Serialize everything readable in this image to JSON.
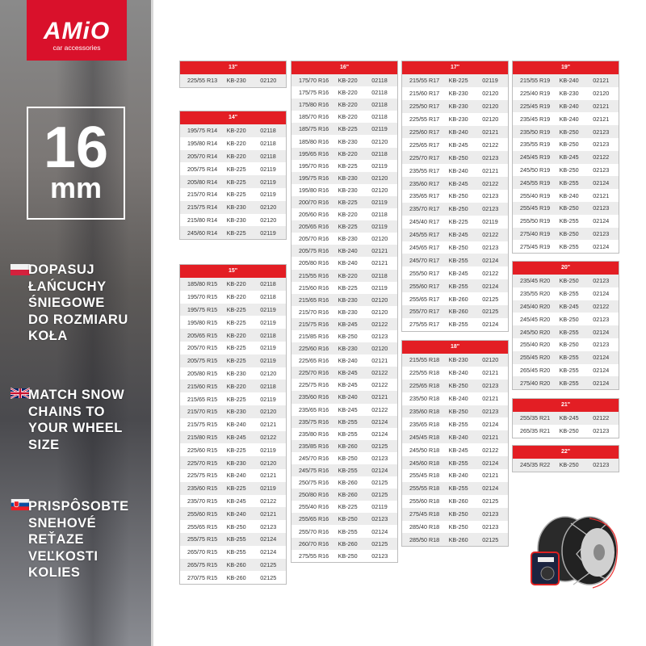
{
  "brand": {
    "name": "AMiO",
    "tagline": "car accessories",
    "color": "#d9112b"
  },
  "chain_size": {
    "value": "16",
    "unit": "mm"
  },
  "slogans": [
    {
      "lang": "pl",
      "flag": "poland-flag-icon",
      "lines": [
        "DOPASUJ",
        "ŁAŃCUCHY",
        "ŚNIEGOWE",
        "DO ROZMIARU",
        "KOŁA"
      ]
    },
    {
      "lang": "en",
      "flag": "uk-flag-icon",
      "lines": [
        "MATCH SNOW",
        "CHAINS TO",
        "YOUR WHEEL",
        "SIZE"
      ]
    },
    {
      "lang": "sk",
      "flag": "slovakia-flag-icon",
      "lines": [
        "PRISPÔSOBTE",
        "SNEHOVÉ",
        "REŤAZE",
        "VEĽKOSTI",
        "KOLIES"
      ]
    }
  ],
  "header_color": "#e31e24",
  "columns": [
    [
      {
        "title": "13\"",
        "rows": [
          [
            "225/55 R13",
            "KB-230",
            "02120"
          ]
        ]
      },
      {
        "title": "14\"",
        "rows": [
          [
            "195/75 R14",
            "KB-220",
            "02118"
          ],
          [
            "195/80 R14",
            "KB-220",
            "02118"
          ],
          [
            "205/70 R14",
            "KB-220",
            "02118"
          ],
          [
            "205/75 R14",
            "KB-225",
            "02119"
          ],
          [
            "205/80 R14",
            "KB-225",
            "02119"
          ],
          [
            "215/70 R14",
            "KB-225",
            "02119"
          ],
          [
            "215/75 R14",
            "KB-230",
            "02120"
          ],
          [
            "215/80 R14",
            "KB-230",
            "02120"
          ],
          [
            "245/60 R14",
            "KB-225",
            "02119"
          ]
        ]
      },
      {
        "title": "15\"",
        "rows": [
          [
            "185/80 R15",
            "KB-220",
            "02118"
          ],
          [
            "195/70 R15",
            "KB-220",
            "02118"
          ],
          [
            "195/75 R15",
            "KB-225",
            "02119"
          ],
          [
            "195/80 R15",
            "KB-225",
            "02119"
          ],
          [
            "205/65 R15",
            "KB-220",
            "02118"
          ],
          [
            "205/70 R15",
            "KB-225",
            "02119"
          ],
          [
            "205/75 R15",
            "KB-225",
            "02119"
          ],
          [
            "205/80 R15",
            "KB-230",
            "02120"
          ],
          [
            "215/60 R15",
            "KB-220",
            "02118"
          ],
          [
            "215/65 R15",
            "KB-225",
            "02119"
          ],
          [
            "215/70 R15",
            "KB-230",
            "02120"
          ],
          [
            "215/75 R15",
            "KB-240",
            "02121"
          ],
          [
            "215/80 R15",
            "KB-245",
            "02122"
          ],
          [
            "225/60 R15",
            "KB-225",
            "02119"
          ],
          [
            "225/70 R15",
            "KB-230",
            "02120"
          ],
          [
            "225/75 R15",
            "KB-240",
            "02121"
          ],
          [
            "235/60 R15",
            "KB-225",
            "02119"
          ],
          [
            "235/70 R15",
            "KB-245",
            "02122"
          ],
          [
            "255/60 R15",
            "KB-240",
            "02121"
          ],
          [
            "255/65 R15",
            "KB-250",
            "02123"
          ],
          [
            "255/75 R15",
            "KB-255",
            "02124"
          ],
          [
            "265/70 R15",
            "KB-255",
            "02124"
          ],
          [
            "265/75 R15",
            "KB-260",
            "02125"
          ],
          [
            "270/75 R15",
            "KB-260",
            "02125"
          ]
        ]
      }
    ],
    [
      {
        "title": "16\"",
        "rows": [
          [
            "175/70 R16",
            "KB-220",
            "02118"
          ],
          [
            "175/75 R16",
            "KB-220",
            "02118"
          ],
          [
            "175/80 R16",
            "KB-220",
            "02118"
          ],
          [
            "185/70 R16",
            "KB-220",
            "02118"
          ],
          [
            "185/75 R16",
            "KB-225",
            "02119"
          ],
          [
            "185/80 R16",
            "KB-230",
            "02120"
          ],
          [
            "195/65 R16",
            "KB-220",
            "02118"
          ],
          [
            "195/70 R16",
            "KB-225",
            "02119"
          ],
          [
            "195/75 R16",
            "KB-230",
            "02120"
          ],
          [
            "195/80 R16",
            "KB-230",
            "02120"
          ],
          [
            "200/70 R16",
            "KB-225",
            "02119"
          ],
          [
            "205/60 R16",
            "KB-220",
            "02118"
          ],
          [
            "205/65 R16",
            "KB-225",
            "02119"
          ],
          [
            "205/70 R16",
            "KB-230",
            "02120"
          ],
          [
            "205/75 R16",
            "KB-240",
            "02121"
          ],
          [
            "205/80 R16",
            "KB-240",
            "02121"
          ],
          [
            "215/55 R16",
            "KB-220",
            "02118"
          ],
          [
            "215/60 R16",
            "KB-225",
            "02119"
          ],
          [
            "215/65 R16",
            "KB-230",
            "02120"
          ],
          [
            "215/70 R16",
            "KB-230",
            "02120"
          ],
          [
            "215/75 R16",
            "KB-245",
            "02122"
          ],
          [
            "215/85 R16",
            "KB-250",
            "02123"
          ],
          [
            "225/60 R16",
            "KB-230",
            "02120"
          ],
          [
            "225/65 R16",
            "KB-240",
            "02121"
          ],
          [
            "225/70 R16",
            "KB-245",
            "02122"
          ],
          [
            "225/75 R16",
            "KB-245",
            "02122"
          ],
          [
            "235/60 R16",
            "KB-240",
            "02121"
          ],
          [
            "235/65 R16",
            "KB-245",
            "02122"
          ],
          [
            "235/75 R16",
            "KB-255",
            "02124"
          ],
          [
            "235/80 R16",
            "KB-255",
            "02124"
          ],
          [
            "235/85 R16",
            "KB-260",
            "02125"
          ],
          [
            "245/70 R16",
            "KB-250",
            "02123"
          ],
          [
            "245/75 R16",
            "KB-255",
            "02124"
          ],
          [
            "250/75 R16",
            "KB-260",
            "02125"
          ],
          [
            "250/80 R16",
            "KB-260",
            "02125"
          ],
          [
            "255/40 R16",
            "KB-225",
            "02119"
          ],
          [
            "255/65 R16",
            "KB-250",
            "02123"
          ],
          [
            "255/70 R16",
            "KB-255",
            "02124"
          ],
          [
            "260/70 R16",
            "KB-260",
            "02125"
          ],
          [
            "275/55 R16",
            "KB-250",
            "02123"
          ]
        ]
      }
    ],
    [
      {
        "title": "17\"",
        "rows": [
          [
            "215/55 R17",
            "KB-225",
            "02119"
          ],
          [
            "215/60 R17",
            "KB-230",
            "02120"
          ],
          [
            "225/50 R17",
            "KB-230",
            "02120"
          ],
          [
            "225/55 R17",
            "KB-230",
            "02120"
          ],
          [
            "225/60 R17",
            "KB-240",
            "02121"
          ],
          [
            "225/65 R17",
            "KB-245",
            "02122"
          ],
          [
            "225/70 R17",
            "KB-250",
            "02123"
          ],
          [
            "235/55 R17",
            "KB-240",
            "02121"
          ],
          [
            "235/60 R17",
            "KB-245",
            "02122"
          ],
          [
            "235/65 R17",
            "KB-250",
            "02123"
          ],
          [
            "235/70 R17",
            "KB-250",
            "02123"
          ],
          [
            "245/40 R17",
            "KB-225",
            "02119"
          ],
          [
            "245/55 R17",
            "KB-245",
            "02122"
          ],
          [
            "245/65 R17",
            "KB-250",
            "02123"
          ],
          [
            "245/70 R17",
            "KB-255",
            "02124"
          ],
          [
            "255/50 R17",
            "KB-245",
            "02122"
          ],
          [
            "255/60 R17",
            "KB-255",
            "02124"
          ],
          [
            "255/65 R17",
            "KB-260",
            "02125"
          ],
          [
            "255/70 R17",
            "KB-260",
            "02125"
          ],
          [
            "275/55 R17",
            "KB-255",
            "02124"
          ]
        ]
      },
      {
        "title": "18\"",
        "rows": [
          [
            "215/55 R18",
            "KB-230",
            "02120"
          ],
          [
            "225/55 R18",
            "KB-240",
            "02121"
          ],
          [
            "225/65 R18",
            "KB-250",
            "02123"
          ],
          [
            "235/50 R18",
            "KB-240",
            "02121"
          ],
          [
            "235/60 R18",
            "KB-250",
            "02123"
          ],
          [
            "235/65 R18",
            "KB-255",
            "02124"
          ],
          [
            "245/45 R18",
            "KB-240",
            "02121"
          ],
          [
            "245/50 R18",
            "KB-245",
            "02122"
          ],
          [
            "245/60 R18",
            "KB-255",
            "02124"
          ],
          [
            "255/45 R18",
            "KB-240",
            "02121"
          ],
          [
            "255/55 R18",
            "KB-255",
            "02124"
          ],
          [
            "255/60 R18",
            "KB-260",
            "02125"
          ],
          [
            "275/45 R18",
            "KB-250",
            "02123"
          ],
          [
            "285/40 R18",
            "KB-250",
            "02123"
          ],
          [
            "285/50 R18",
            "KB-260",
            "02125"
          ]
        ]
      }
    ],
    [
      {
        "title": "19\"",
        "rows": [
          [
            "215/55 R19",
            "KB-240",
            "02121"
          ],
          [
            "225/40 R19",
            "KB-230",
            "02120"
          ],
          [
            "225/45 R19",
            "KB-240",
            "02121"
          ],
          [
            "235/45 R19",
            "KB-240",
            "02121"
          ],
          [
            "235/50 R19",
            "KB-250",
            "02123"
          ],
          [
            "235/55 R19",
            "KB-250",
            "02123"
          ],
          [
            "245/45 R19",
            "KB-245",
            "02122"
          ],
          [
            "245/50 R19",
            "KB-250",
            "02123"
          ],
          [
            "245/55 R19",
            "KB-255",
            "02124"
          ],
          [
            "255/40 R19",
            "KB-240",
            "02121"
          ],
          [
            "255/45 R19",
            "KB-250",
            "02123"
          ],
          [
            "255/50 R19",
            "KB-255",
            "02124"
          ],
          [
            "275/40 R19",
            "KB-250",
            "02123"
          ],
          [
            "275/45 R19",
            "KB-255",
            "02124"
          ]
        ]
      },
      {
        "title": "20\"",
        "rows": [
          [
            "235/45 R20",
            "KB-250",
            "02123"
          ],
          [
            "235/55 R20",
            "KB-255",
            "02124"
          ],
          [
            "245/40 R20",
            "KB-245",
            "02122"
          ],
          [
            "245/45 R20",
            "KB-250",
            "02123"
          ],
          [
            "245/50 R20",
            "KB-255",
            "02124"
          ],
          [
            "255/40 R20",
            "KB-250",
            "02123"
          ],
          [
            "255/45 R20",
            "KB-255",
            "02124"
          ],
          [
            "265/45 R20",
            "KB-255",
            "02124"
          ],
          [
            "275/40 R20",
            "KB-255",
            "02124"
          ]
        ]
      },
      {
        "title": "21\"",
        "rows": [
          [
            "255/35 R21",
            "KB-245",
            "02122"
          ],
          [
            "265/35 R21",
            "KB-250",
            "02123"
          ]
        ]
      },
      {
        "title": "22\"",
        "rows": [
          [
            "245/35 R22",
            "KB-250",
            "02123"
          ]
        ]
      }
    ]
  ]
}
